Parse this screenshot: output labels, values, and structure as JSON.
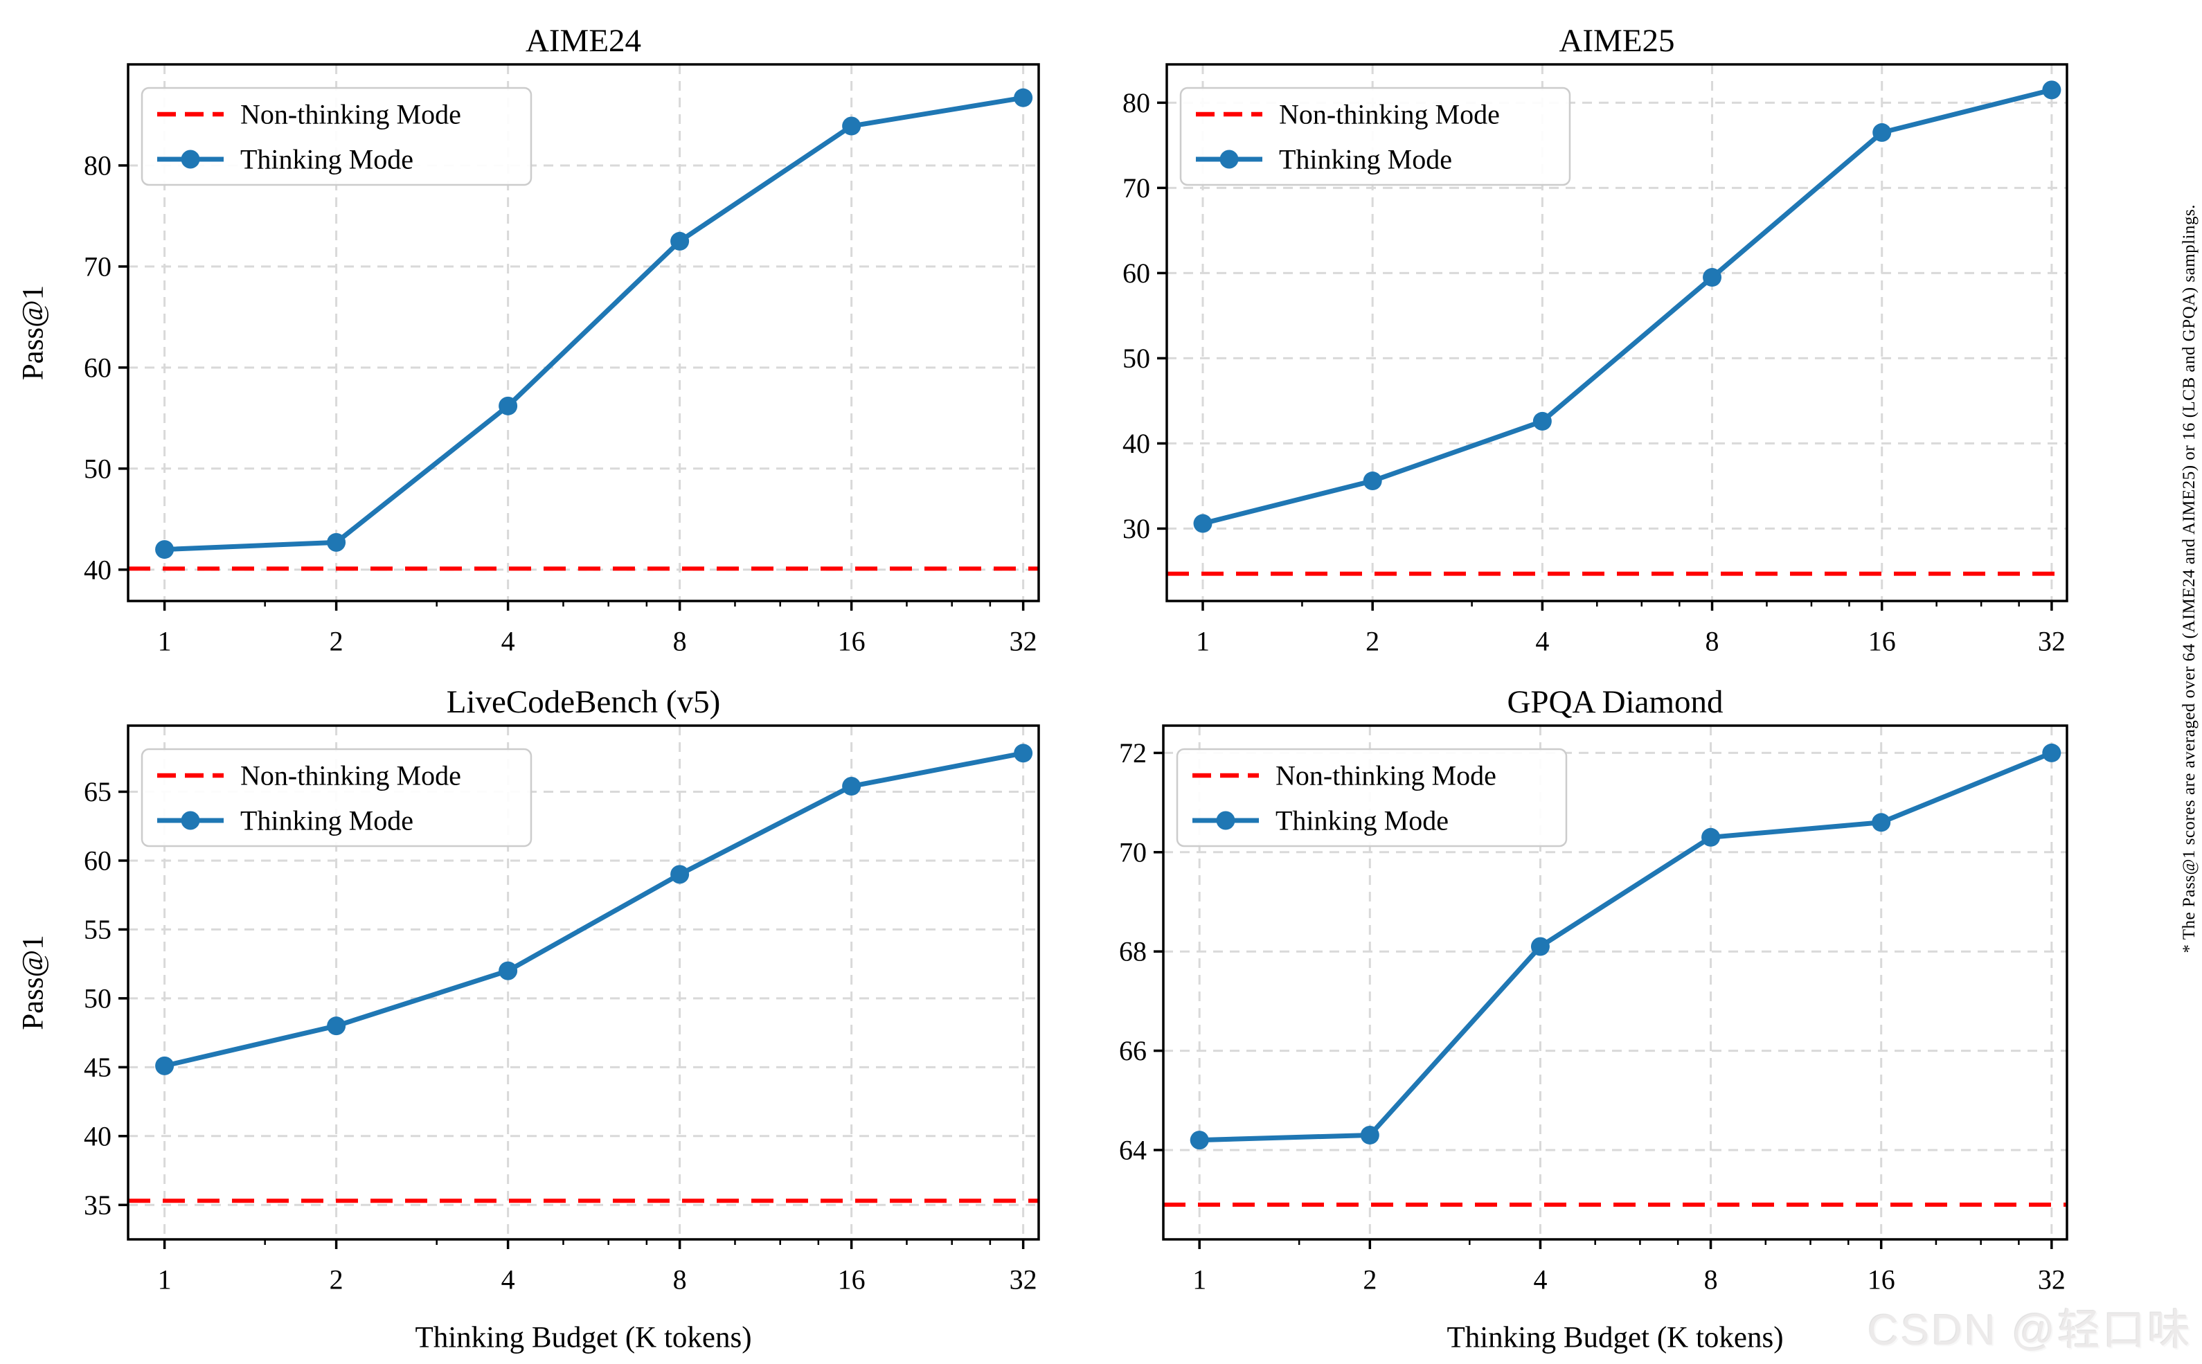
{
  "legend": {
    "non_thinking_label": "Non-thinking Mode",
    "thinking_label": "Thinking Mode"
  },
  "colors": {
    "thinking": "#1f77b4",
    "non_thinking": "#ff0000",
    "grid": "#d9d9d9",
    "spine": "#000000",
    "text": "#000000",
    "legend_border": "#cccccc",
    "watermark": "#eceaea"
  },
  "axis": {
    "x_tick_labels": [
      "1",
      "2",
      "4",
      "8",
      "16",
      "32"
    ],
    "x_ticks": [
      1,
      2,
      4,
      8,
      16,
      32
    ],
    "x_minor_ticks": [
      1.5,
      3,
      5,
      6,
      7,
      10,
      12,
      14,
      20,
      24,
      28
    ],
    "x_scale": "log2"
  },
  "chart_data": [
    {
      "type": "line",
      "title": "AIME24",
      "xlabel": "",
      "ylabel": "Pass@1",
      "x": [
        1,
        2,
        4,
        8,
        16,
        32
      ],
      "series": [
        {
          "name": "Thinking Mode",
          "values": [
            42.0,
            42.7,
            56.2,
            72.5,
            83.9,
            86.7
          ]
        },
        {
          "name": "Non-thinking Mode",
          "baseline": 40.1
        }
      ],
      "y_ticks": [
        40,
        50,
        60,
        70,
        80
      ],
      "ylim": [
        36.9,
        90.0
      ],
      "grid": true,
      "legend_position": "upper-left"
    },
    {
      "type": "line",
      "title": "AIME25",
      "xlabel": "",
      "ylabel": "",
      "x": [
        1,
        2,
        4,
        8,
        16,
        32
      ],
      "series": [
        {
          "name": "Thinking Mode",
          "values": [
            30.6,
            35.6,
            42.6,
            59.5,
            76.5,
            81.5
          ]
        },
        {
          "name": "Non-thinking Mode",
          "baseline": 24.7
        }
      ],
      "y_ticks": [
        30,
        40,
        50,
        60,
        70,
        80
      ],
      "ylim": [
        21.5,
        84.5
      ],
      "grid": true,
      "legend_position": "upper-left"
    },
    {
      "type": "line",
      "title": "LiveCodeBench (v5)",
      "xlabel": "Thinking Budget (K tokens)",
      "ylabel": "Pass@1",
      "x": [
        1,
        2,
        4,
        8,
        16,
        32
      ],
      "series": [
        {
          "name": "Thinking Mode",
          "values": [
            45.1,
            48.0,
            52.0,
            59.0,
            65.4,
            67.8
          ]
        },
        {
          "name": "Non-thinking Mode",
          "baseline": 35.3
        }
      ],
      "y_ticks": [
        35,
        40,
        45,
        50,
        55,
        60,
        65
      ],
      "ylim": [
        32.5,
        69.8
      ],
      "grid": true,
      "legend_position": "upper-left"
    },
    {
      "type": "line",
      "title": "GPQA Diamond",
      "xlabel": "Thinking Budget (K tokens)",
      "ylabel": "",
      "x": [
        1,
        2,
        4,
        8,
        16,
        32
      ],
      "series": [
        {
          "name": "Thinking Mode",
          "values": [
            64.2,
            64.3,
            68.1,
            70.3,
            70.6,
            72.0
          ]
        },
        {
          "name": "Non-thinking Mode",
          "baseline": 62.9
        }
      ],
      "y_ticks": [
        64,
        66,
        68,
        70,
        72
      ],
      "ylim": [
        62.2,
        72.55
      ],
      "grid": true,
      "legend_position": "upper-left"
    }
  ],
  "annotations": {
    "side_note": "* The Pass@1 scores are averaged over 64 (AIME24 and AIME25) or 16 (LCB and GPQA) samplings.",
    "watermark": "CSDN @轻口味"
  }
}
